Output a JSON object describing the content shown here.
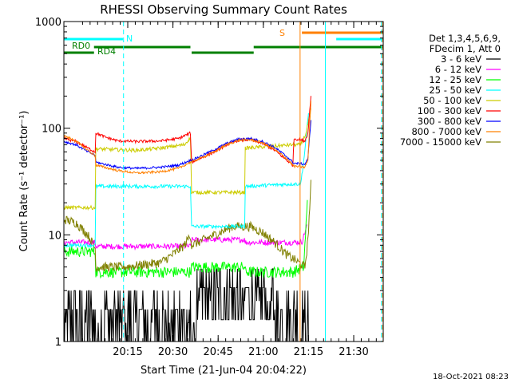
{
  "chart_data": {
    "type": "line",
    "title": "RHESSI Observing Summary Count Rates",
    "xlabel": "Start Time (21-Jun-04 20:04:22)",
    "ylabel": "Count Rate (s⁻¹ detector⁻¹)",
    "y_scale": "log",
    "ylim": [
      1,
      1000
    ],
    "xlim_minutes": [
      0,
      53
    ],
    "x_ticks": [
      {
        "label": "20:15",
        "minute": 10.6
      },
      {
        "label": "20:30",
        "minute": 18.1
      },
      {
        "label": "20:45",
        "minute": 25.6
      },
      {
        "label": "21:00",
        "minute": 33.1
      },
      {
        "label": "21:15",
        "minute": 40.6
      },
      {
        "label": "21:30",
        "minute": 48.1
      }
    ],
    "y_ticks": [
      {
        "label": "1",
        "value": 1
      },
      {
        "label": "10",
        "value": 10
      },
      {
        "label": "100",
        "value": 100
      },
      {
        "label": "1000",
        "value": 1000
      }
    ],
    "legend_header": [
      "Det 1,3,4,5,6,9,",
      "FDecim 1, Att 0"
    ],
    "legend_position": "right",
    "series": [
      {
        "name": "3 - 6 keV",
        "color": "#000000",
        "noise": "counts",
        "points": [
          [
            0,
            1.3
          ],
          [
            7.5,
            1.3
          ],
          [
            22,
            1.5
          ],
          [
            30,
            3.0
          ],
          [
            35,
            1.5
          ],
          [
            39.5,
            1.3
          ],
          [
            40.2,
            2.5
          ],
          [
            40.6,
            3
          ]
        ]
      },
      {
        "name": "6 - 12 keV",
        "color": "#ff00ff",
        "noise": 0.06,
        "points": [
          [
            0,
            8.5
          ],
          [
            5.2,
            8.5
          ],
          [
            5.3,
            7.8
          ],
          [
            21,
            7.8
          ],
          [
            21.2,
            9.0
          ],
          [
            30,
            9.0
          ],
          [
            30.1,
            8.5
          ],
          [
            38,
            8.5
          ],
          [
            39.5,
            8.6
          ],
          [
            40.3,
            12
          ]
        ]
      },
      {
        "name": "12 - 25 keV",
        "color": "#00ff00",
        "noise": 0.12,
        "points": [
          [
            0,
            7
          ],
          [
            5.2,
            7
          ],
          [
            5.3,
            4.5
          ],
          [
            21,
            4.5
          ],
          [
            21.2,
            5
          ],
          [
            30,
            5
          ],
          [
            30.1,
            4.5
          ],
          [
            38,
            4.5
          ],
          [
            39.8,
            5
          ],
          [
            40.4,
            20
          ]
        ]
      },
      {
        "name": "25 - 50 keV",
        "color": "#00ffff",
        "noise": 0.04,
        "points": [
          [
            0,
            8
          ],
          [
            5.2,
            8
          ],
          [
            5.3,
            28.5
          ],
          [
            21,
            28.5
          ],
          [
            21.2,
            12
          ],
          [
            30,
            12
          ],
          [
            30.1,
            28.5
          ],
          [
            38,
            30
          ],
          [
            39.3,
            30
          ],
          [
            39.9,
            55
          ],
          [
            40.6,
            140
          ]
        ]
      },
      {
        "name": "50 - 100 keV",
        "color": "#cccc00",
        "noise": 0.04,
        "points": [
          [
            0,
            18
          ],
          [
            5.2,
            18
          ],
          [
            5.3,
            64
          ],
          [
            12,
            62
          ],
          [
            16,
            65
          ],
          [
            20,
            70
          ],
          [
            21,
            82
          ],
          [
            21.2,
            25
          ],
          [
            30,
            25
          ],
          [
            30.1,
            65
          ],
          [
            38,
            70
          ],
          [
            39.3,
            70
          ],
          [
            40.2,
            90
          ],
          [
            41,
            150
          ]
        ]
      },
      {
        "name": "100 - 300 keV",
        "color": "#ff0000",
        "noise": 0.03,
        "points": [
          [
            0,
            80
          ],
          [
            2,
            75
          ],
          [
            4,
            65
          ],
          [
            5.2,
            60
          ],
          [
            5.3,
            90
          ],
          [
            7,
            82
          ],
          [
            9,
            76
          ],
          [
            12,
            75
          ],
          [
            16,
            76
          ],
          [
            19,
            80
          ],
          [
            21,
            90
          ],
          [
            21.2,
            48
          ],
          [
            25,
            60
          ],
          [
            27,
            70
          ],
          [
            29,
            77
          ],
          [
            31,
            78
          ],
          [
            33,
            72
          ],
          [
            35,
            62
          ],
          [
            37,
            50
          ],
          [
            38,
            45
          ],
          [
            38.2,
            80
          ],
          [
            40,
            76
          ],
          [
            40.5,
            90
          ],
          [
            41,
            200
          ]
        ]
      },
      {
        "name": "300 - 800 keV",
        "color": "#0000ff",
        "noise": 0.025,
        "points": [
          [
            0,
            75
          ],
          [
            2,
            70
          ],
          [
            4,
            60
          ],
          [
            5.2,
            56
          ],
          [
            5.3,
            48
          ],
          [
            9,
            43
          ],
          [
            12,
            42
          ],
          [
            16,
            43
          ],
          [
            19,
            45
          ],
          [
            21,
            50
          ],
          [
            21.2,
            50
          ],
          [
            25,
            63
          ],
          [
            27,
            72
          ],
          [
            29,
            79
          ],
          [
            31,
            80
          ],
          [
            33,
            75
          ],
          [
            35,
            66
          ],
          [
            37,
            54
          ],
          [
            38,
            48
          ],
          [
            38.2,
            47
          ],
          [
            40,
            46
          ],
          [
            40.5,
            52
          ],
          [
            41,
            120
          ]
        ]
      },
      {
        "name": "800 - 7000 keV",
        "color": "#ff8000",
        "noise": 0.025,
        "points": [
          [
            0,
            85
          ],
          [
            2,
            76
          ],
          [
            4,
            62
          ],
          [
            5.2,
            55
          ],
          [
            5.3,
            45
          ],
          [
            9,
            40
          ],
          [
            12,
            38
          ],
          [
            16,
            39
          ],
          [
            19,
            42
          ],
          [
            21,
            48
          ],
          [
            21.2,
            48
          ],
          [
            25,
            60
          ],
          [
            27,
            70
          ],
          [
            29,
            77
          ],
          [
            31,
            78
          ],
          [
            33,
            73
          ],
          [
            35,
            63
          ],
          [
            37,
            52
          ],
          [
            38,
            45
          ],
          [
            38.2,
            44
          ],
          [
            40,
            43
          ],
          [
            40.5,
            50
          ],
          [
            41,
            180
          ]
        ]
      },
      {
        "name": "7000 - 15000 keV",
        "color": "#808000",
        "noise": 0.1,
        "points": [
          [
            0,
            14
          ],
          [
            2,
            13
          ],
          [
            4,
            10
          ],
          [
            5.2,
            7.5
          ],
          [
            5.3,
            5
          ],
          [
            10,
            5
          ],
          [
            16,
            5.5
          ],
          [
            18,
            6.5
          ],
          [
            20,
            8
          ],
          [
            21,
            10
          ],
          [
            21.2,
            8
          ],
          [
            25,
            10
          ],
          [
            28,
            12
          ],
          [
            31,
            12
          ],
          [
            33,
            10.5
          ],
          [
            35,
            8.5
          ],
          [
            37,
            6.5
          ],
          [
            38,
            6
          ],
          [
            40,
            5
          ],
          [
            40.5,
            9
          ],
          [
            41,
            30
          ]
        ]
      }
    ],
    "attenuator_flags": [
      {
        "label": "RD0",
        "color": "#008000",
        "segments": [
          [
            0,
            5
          ]
        ]
      },
      {
        "label": "RD4",
        "color": "#008000",
        "segments": [
          [
            5,
            21
          ],
          [
            21.2,
            31.5
          ],
          [
            31.5,
            53
          ]
        ]
      }
    ],
    "night_flags": [
      {
        "label": "N",
        "color": "#00ffff",
        "segments": [
          [
            0,
            9.8
          ]
        ]
      },
      {
        "label": "",
        "color": "#00ffff",
        "segments": [
          [
            45.2,
            53
          ]
        ]
      }
    ],
    "saa_flags": [
      {
        "label": "S",
        "color": "#ff8000",
        "segments": [
          [
            39.5,
            53
          ]
        ]
      }
    ],
    "vertical_markers": [
      {
        "minute": 0,
        "color": "#00ffff",
        "style": "solid"
      },
      {
        "minute": 9.9,
        "color": "#00ffff",
        "style": "dashed"
      },
      {
        "minute": 39.2,
        "color": "#ff8000",
        "style": "solid"
      },
      {
        "minute": 43.4,
        "color": "#00ffff",
        "style": "solid"
      },
      {
        "minute": 52.7,
        "color": "#00ffff",
        "style": "dashed"
      },
      {
        "minute": 52.9,
        "color": "#ff8000",
        "style": "dashed"
      }
    ],
    "timestamp": "18-Oct-2021 08:23"
  }
}
